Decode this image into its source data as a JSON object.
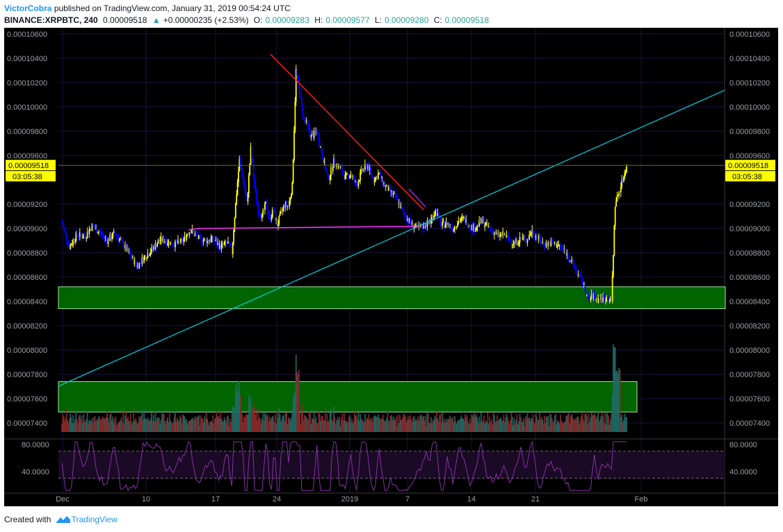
{
  "header": {
    "author": "VictorCobra",
    "published_text": "published on TradingView.com, January 31, 2019 00:54:24 UTC",
    "symbol": "BINANCE:XRPBTC, 240",
    "last": "0.00009518",
    "change": "+0.00000235 (+2.53%)",
    "o_label": "O:",
    "o_value": "0.00009283",
    "h_label": "H:",
    "h_value": "0.00009577",
    "l_label": "L:",
    "l_value": "0.00009280",
    "c_label": "C:",
    "c_value": "0.00009518"
  },
  "footer": {
    "created_with": "Created with",
    "brand": "TradingView"
  },
  "colors": {
    "background": "#000000",
    "bull_candle": "#ffff00",
    "bear_candle": "#0000ff",
    "trendline_up": "#00c8d2",
    "trendline_down": "#ff1a1a",
    "support_line": "#ff33ff",
    "zone_fill": "#006400",
    "zone_border": "#a6e6a6",
    "rsi_line": "#8a2fa8",
    "price_label_bg": "#ffff00",
    "volume_up": "#1f6b66",
    "volume_down": "#8b2b2b"
  },
  "chart_data": {
    "type": "candlestick",
    "price_axis_ticks": [
      "0.00010600",
      "0.00010400",
      "0.00010200",
      "0.00010000",
      "0.00009800",
      "0.00009600",
      "0.00009200",
      "0.00009000",
      "0.00008800",
      "0.00008600",
      "0.00008400",
      "0.00008200",
      "0.00008000",
      "0.00007800",
      "0.00007600",
      "0.00007400"
    ],
    "ylim": [
      7.28e-05,
      0.0001065
    ],
    "time_axis_labels": [
      "Dec",
      "10",
      "17",
      "24",
      "2019",
      "7",
      "14",
      "21",
      "Feb"
    ],
    "current_price_label": "0.00009518",
    "countdown_label": "03:05:38",
    "rsi_axis_ticks": [
      "80.0000",
      "40.0000"
    ],
    "rsi_bands": [
      70,
      30
    ],
    "rsi_ylim": [
      10,
      85
    ],
    "close_path": [
      [
        0,
        9.05e-05
      ],
      [
        8,
        8.85e-05
      ],
      [
        16,
        8.95e-05
      ],
      [
        24,
        8.93e-05
      ],
      [
        32,
        9.02e-05
      ],
      [
        40,
        8.97e-05
      ],
      [
        48,
        8.9e-05
      ],
      [
        56,
        8.96e-05
      ],
      [
        64,
        8.88e-05
      ],
      [
        72,
        8.78e-05
      ],
      [
        80,
        8.69e-05
      ],
      [
        88,
        8.77e-05
      ],
      [
        96,
        8.83e-05
      ],
      [
        104,
        8.91e-05
      ],
      [
        112,
        8.89e-05
      ],
      [
        120,
        8.87e-05
      ],
      [
        128,
        8.9e-05
      ],
      [
        136,
        8.99e-05
      ],
      [
        144,
        8.92e-05
      ],
      [
        152,
        8.9e-05
      ],
      [
        160,
        8.91e-05
      ],
      [
        168,
        8.85e-05
      ],
      [
        176,
        8.88e-05
      ],
      [
        180,
        8.8e-05
      ],
      [
        184,
        9.2e-05
      ],
      [
        188,
        9.56e-05
      ],
      [
        192,
        9.4e-05
      ],
      [
        196,
        9.2e-05
      ],
      [
        200,
        9.65e-05
      ],
      [
        204,
        9.35e-05
      ],
      [
        208,
        9.15e-05
      ],
      [
        212,
        9.1e-05
      ],
      [
        216,
        9.2e-05
      ],
      [
        220,
        9.08e-05
      ],
      [
        224,
        9.15e-05
      ],
      [
        228,
        9.03e-05
      ],
      [
        232,
        9.12e-05
      ],
      [
        236,
        9.2e-05
      ],
      [
        240,
        9.18e-05
      ],
      [
        244,
        9.35e-05
      ],
      [
        248,
        0.000103
      ],
      [
        252,
        0.000101
      ],
      [
        256,
        9.9e-05
      ],
      [
        260,
        9.85e-05
      ],
      [
        264,
        9.75e-05
      ],
      [
        270,
        9.8e-05
      ],
      [
        276,
        9.6e-05
      ],
      [
        282,
        9.4e-05
      ],
      [
        288,
        9.55e-05
      ],
      [
        294,
        9.5e-05
      ],
      [
        300,
        9.42e-05
      ],
      [
        306,
        9.45e-05
      ],
      [
        312,
        9.35e-05
      ],
      [
        318,
        9.48e-05
      ],
      [
        324,
        9.52e-05
      ],
      [
        330,
        9.4e-05
      ],
      [
        336,
        9.45e-05
      ],
      [
        342,
        9.35e-05
      ],
      [
        348,
        9.3e-05
      ],
      [
        354,
        9.25e-05
      ],
      [
        360,
        9.15e-05
      ],
      [
        366,
        9.08e-05
      ],
      [
        372,
        9.02e-05
      ],
      [
        378,
        9e-05
      ],
      [
        384,
        9.03e-05
      ],
      [
        390,
        9.05e-05
      ],
      [
        396,
        9.15e-05
      ],
      [
        402,
        9.02e-05
      ],
      [
        408,
        9.05e-05
      ],
      [
        414,
        9e-05
      ],
      [
        420,
        9.06e-05
      ],
      [
        426,
        9.08e-05
      ],
      [
        432,
        9.02e-05
      ],
      [
        438,
        9e-05
      ],
      [
        444,
        9.06e-05
      ],
      [
        450,
        9.02e-05
      ],
      [
        456,
        8.98e-05
      ],
      [
        462,
        8.94e-05
      ],
      [
        468,
        8.95e-05
      ],
      [
        474,
        8.9e-05
      ],
      [
        480,
        8.88e-05
      ],
      [
        486,
        8.92e-05
      ],
      [
        492,
        8.9e-05
      ],
      [
        498,
        8.98e-05
      ],
      [
        504,
        8.92e-05
      ],
      [
        510,
        8.87e-05
      ],
      [
        516,
        8.88e-05
      ],
      [
        522,
        8.87e-05
      ],
      [
        528,
        8.85e-05
      ],
      [
        534,
        8.8e-05
      ],
      [
        540,
        8.72e-05
      ],
      [
        546,
        8.63e-05
      ],
      [
        552,
        8.55e-05
      ],
      [
        558,
        8.4e-05
      ],
      [
        562,
        8.45e-05
      ],
      [
        566,
        8.41e-05
      ],
      [
        570,
        8.43e-05
      ],
      [
        574,
        8.42e-05
      ],
      [
        578,
        8.43e-05
      ],
      [
        582,
        8.4e-05
      ],
      [
        586,
        9.2e-05
      ],
      [
        590,
        9.3e-05
      ],
      [
        594,
        9.4e-05
      ],
      [
        598,
        9.52e-05
      ]
    ],
    "volume_zone_top_price": 7.74e-05
  }
}
